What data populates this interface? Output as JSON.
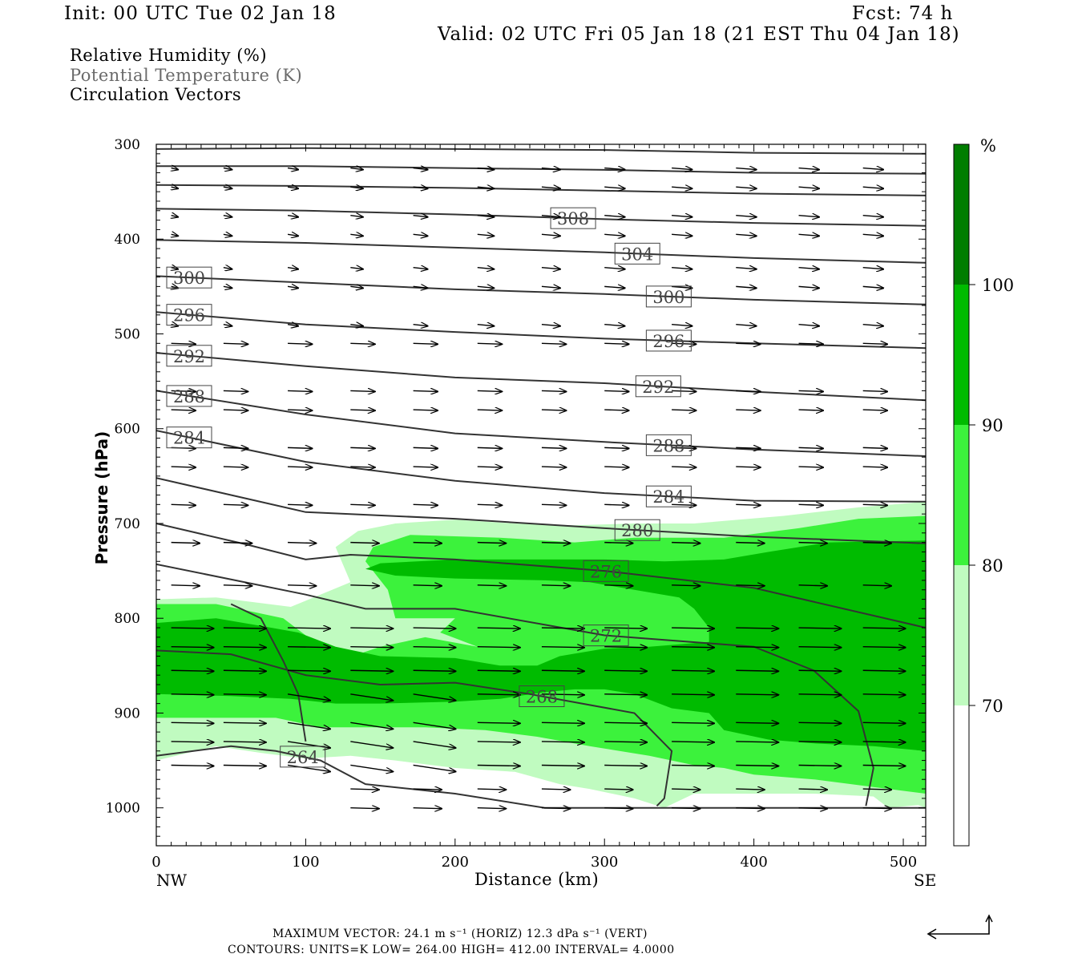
{
  "header": {
    "init": "Init: 00 UTC Tue 02 Jan 18",
    "fcst": "Fcst:   74 h",
    "valid": "Valid: 02 UTC Fri 05 Jan 18 (21 EST Thu 04 Jan 18)"
  },
  "legend_lines": {
    "rh": "Relative Humidity (%)",
    "theta": "Potential Temperature (K)",
    "vectors": "Circulation Vectors"
  },
  "footer": {
    "max_vector": "MAXIMUM VECTOR:  24.1 m s⁻¹ (HORIZ)        12.3 dPa s⁻¹ (VERT)",
    "contours": "CONTOURS:  UNITS=K  LOW=  264.00       HIGH=  412.00       INTERVAL=    4.0000"
  },
  "colors": {
    "rh70": "#c0fbc0",
    "rh80": "#3cf23c",
    "rh90": "#00bb00",
    "rh100": "#007d00",
    "contour": "#333333"
  },
  "chart_data": {
    "type": "cross-section",
    "xlabel": "Distance (km)",
    "ylabel": "Pressure (hPa)",
    "x_left_label": "NW",
    "x_right_label": "SE",
    "xlim": [
      0,
      515
    ],
    "ylim": [
      300,
      1040
    ],
    "x_ticks": [
      0,
      100,
      200,
      300,
      400,
      500
    ],
    "y_ticks": [
      300,
      400,
      500,
      600,
      700,
      800,
      900,
      1000
    ],
    "colorbar": {
      "unit": "%",
      "levels": [
        70,
        80,
        90,
        100
      ],
      "fills": [
        "#c0fbc0",
        "#3cf23c",
        "#00bb00",
        "#007d00"
      ]
    },
    "rh_regions": [
      {
        "level": 70,
        "points": [
          [
            0,
            780
          ],
          [
            40,
            778
          ],
          [
            90,
            788
          ],
          [
            130,
            762
          ],
          [
            120,
            725
          ],
          [
            135,
            708
          ],
          [
            160,
            700
          ],
          [
            200,
            696
          ],
          [
            240,
            700
          ],
          [
            280,
            702
          ],
          [
            320,
            700
          ],
          [
            360,
            700
          ],
          [
            420,
            692
          ],
          [
            470,
            683
          ],
          [
            515,
            677
          ],
          [
            515,
            1000
          ],
          [
            510,
            997
          ],
          [
            490,
            1000
          ],
          [
            480,
            988
          ],
          [
            440,
            985
          ],
          [
            400,
            985
          ],
          [
            360,
            985
          ],
          [
            340,
            1000
          ],
          [
            320,
            990
          ],
          [
            290,
            980
          ],
          [
            270,
            975
          ],
          [
            240,
            962
          ],
          [
            200,
            958
          ],
          [
            160,
            950
          ],
          [
            130,
            945
          ],
          [
            100,
            948
          ],
          [
            70,
            942
          ],
          [
            40,
            935
          ],
          [
            0,
            950
          ]
        ]
      },
      {
        "level": 80,
        "points": [
          [
            0,
            785
          ],
          [
            40,
            785
          ],
          [
            85,
            800
          ],
          [
            110,
            830
          ],
          [
            135,
            838
          ],
          [
            150,
            830
          ],
          [
            180,
            820
          ],
          [
            215,
            830
          ],
          [
            190,
            815
          ],
          [
            200,
            800
          ],
          [
            160,
            800
          ],
          [
            155,
            770
          ],
          [
            140,
            740
          ],
          [
            145,
            725
          ],
          [
            170,
            712
          ],
          [
            230,
            715
          ],
          [
            280,
            720
          ],
          [
            320,
            715
          ],
          [
            380,
            715
          ],
          [
            430,
            705
          ],
          [
            470,
            695
          ],
          [
            515,
            692
          ],
          [
            515,
            985
          ],
          [
            480,
            978
          ],
          [
            440,
            970
          ],
          [
            400,
            965
          ],
          [
            380,
            958
          ],
          [
            360,
            955
          ],
          [
            330,
            945
          ],
          [
            290,
            935
          ],
          [
            255,
            925
          ],
          [
            220,
            918
          ],
          [
            180,
            915
          ],
          [
            140,
            915
          ],
          [
            110,
            915
          ],
          [
            80,
            905
          ],
          [
            40,
            905
          ],
          [
            0,
            905
          ]
        ]
      },
      {
        "level": 90,
        "points": [
          [
            0,
            805
          ],
          [
            40,
            800
          ],
          [
            70,
            808
          ],
          [
            95,
            815
          ],
          [
            120,
            830
          ],
          [
            150,
            840
          ],
          [
            200,
            842
          ],
          [
            230,
            850
          ],
          [
            255,
            850
          ],
          [
            270,
            840
          ],
          [
            300,
            832
          ],
          [
            330,
            830
          ],
          [
            370,
            825
          ],
          [
            370,
            810
          ],
          [
            360,
            790
          ],
          [
            350,
            778
          ],
          [
            320,
            770
          ],
          [
            290,
            762
          ],
          [
            260,
            760
          ],
          [
            200,
            758
          ],
          [
            160,
            755
          ],
          [
            140,
            748
          ],
          [
            150,
            742
          ],
          [
            200,
            738
          ],
          [
            260,
            738
          ],
          [
            300,
            738
          ],
          [
            340,
            740
          ],
          [
            380,
            738
          ],
          [
            410,
            730
          ],
          [
            450,
            720
          ],
          [
            515,
            718
          ],
          [
            515,
            940
          ],
          [
            480,
            935
          ],
          [
            440,
            932
          ],
          [
            410,
            928
          ],
          [
            380,
            918
          ],
          [
            370,
            900
          ],
          [
            345,
            895
          ],
          [
            320,
            880
          ],
          [
            300,
            875
          ],
          [
            280,
            875
          ],
          [
            260,
            878
          ],
          [
            230,
            885
          ],
          [
            200,
            888
          ],
          [
            150,
            890
          ],
          [
            120,
            890
          ],
          [
            90,
            885
          ],
          [
            50,
            882
          ],
          [
            0,
            880
          ]
        ]
      }
    ],
    "isentropes": [
      {
        "label": "",
        "points": [
          [
            0,
            305
          ],
          [
            100,
            304
          ],
          [
            200,
            305
          ],
          [
            300,
            306
          ],
          [
            400,
            309
          ],
          [
            515,
            310
          ]
        ]
      },
      {
        "label": "",
        "points": [
          [
            0,
            323
          ],
          [
            100,
            323
          ],
          [
            200,
            325
          ],
          [
            300,
            327
          ],
          [
            400,
            330
          ],
          [
            515,
            331
          ]
        ]
      },
      {
        "label": "",
        "points": [
          [
            0,
            343
          ],
          [
            100,
            344
          ],
          [
            200,
            346
          ],
          [
            300,
            349
          ],
          [
            400,
            352
          ],
          [
            515,
            354
          ]
        ]
      },
      {
        "label": "308",
        "lx": 279,
        "points": [
          [
            0,
            368
          ],
          [
            100,
            370
          ],
          [
            200,
            374
          ],
          [
            300,
            379
          ],
          [
            400,
            383
          ],
          [
            515,
            386
          ]
        ]
      },
      {
        "label": "304",
        "lx": 322,
        "points": [
          [
            0,
            401
          ],
          [
            100,
            404
          ],
          [
            200,
            409
          ],
          [
            300,
            414
          ],
          [
            400,
            420
          ],
          [
            515,
            425
          ]
        ]
      },
      {
        "label": "300",
        "lx": 22,
        "points": [
          [
            0,
            439
          ],
          [
            100,
            446
          ],
          [
            200,
            453
          ],
          [
            300,
            458
          ],
          [
            400,
            464
          ],
          [
            515,
            469
          ]
        ]
      },
      {
        "label": "300",
        "lx": 343,
        "points": []
      },
      {
        "label": "296",
        "lx": 22,
        "points": [
          [
            0,
            477
          ],
          [
            100,
            490
          ],
          [
            200,
            498
          ],
          [
            300,
            505
          ],
          [
            400,
            510
          ],
          [
            515,
            515
          ]
        ]
      },
      {
        "label": "296",
        "lx": 343,
        "points": []
      },
      {
        "label": "292",
        "lx": 22,
        "points": [
          [
            0,
            520
          ],
          [
            100,
            534
          ],
          [
            200,
            546
          ],
          [
            300,
            552
          ],
          [
            400,
            561
          ],
          [
            515,
            570
          ]
        ]
      },
      {
        "label": "292",
        "lx": 336,
        "points": []
      },
      {
        "label": "288",
        "lx": 22,
        "points": [
          [
            0,
            560
          ],
          [
            100,
            585
          ],
          [
            200,
            605
          ],
          [
            300,
            614
          ],
          [
            400,
            622
          ],
          [
            515,
            629
          ]
        ]
      },
      {
        "label": "288",
        "lx": 343,
        "points": []
      },
      {
        "label": "284",
        "lx": 22,
        "points": [
          [
            0,
            602
          ],
          [
            100,
            635
          ],
          [
            200,
            655
          ],
          [
            300,
            668
          ],
          [
            400,
            676
          ],
          [
            515,
            677
          ]
        ]
      },
      {
        "label": "284",
        "lx": 343,
        "points": []
      },
      {
        "label": "280",
        "lx": 322,
        "points": [
          [
            0,
            652
          ],
          [
            100,
            688
          ],
          [
            200,
            695
          ],
          [
            300,
            705
          ],
          [
            400,
            714
          ],
          [
            515,
            721
          ]
        ]
      },
      {
        "label": "276",
        "lx": 301,
        "points": [
          [
            0,
            700
          ],
          [
            60,
            722
          ],
          [
            100,
            738
          ],
          [
            130,
            733
          ],
          [
            200,
            738
          ],
          [
            300,
            750
          ],
          [
            400,
            768
          ],
          [
            515,
            810
          ]
        ]
      },
      {
        "label": "272",
        "lx": 301,
        "points": [
          [
            0,
            743
          ],
          [
            100,
            775
          ],
          [
            140,
            790
          ],
          [
            200,
            790
          ],
          [
            300,
            818
          ],
          [
            400,
            830
          ],
          [
            440,
            855
          ],
          [
            470,
            898
          ],
          [
            480,
            958
          ],
          [
            475,
            998
          ]
        ]
      },
      {
        "label": "268",
        "lx": 258,
        "points": [
          [
            0,
            834
          ],
          [
            50,
            838
          ],
          [
            100,
            860
          ],
          [
            150,
            870
          ],
          [
            200,
            868
          ],
          [
            250,
            880
          ],
          [
            320,
            900
          ],
          [
            345,
            940
          ],
          [
            340,
            990
          ],
          [
            335,
            998
          ]
        ]
      },
      {
        "label": "264",
        "lx": 98,
        "points": [
          [
            0,
            945
          ],
          [
            50,
            935
          ],
          [
            80,
            940
          ],
          [
            110,
            950
          ],
          [
            140,
            975
          ],
          [
            200,
            985
          ],
          [
            260,
            1000
          ],
          [
            515,
            1000
          ]
        ]
      },
      {
        "label": "",
        "points": [
          [
            50,
            785
          ],
          [
            70,
            800
          ],
          [
            85,
            845
          ],
          [
            95,
            880
          ],
          [
            100,
            930
          ]
        ]
      }
    ],
    "vectors_note": "Circulation vectors drawn as arrows: weak and nearly horizontal aloft, strongest (up to 24.1 m/s) in the 800-950 hPa layer flowing NW to SE."
  }
}
